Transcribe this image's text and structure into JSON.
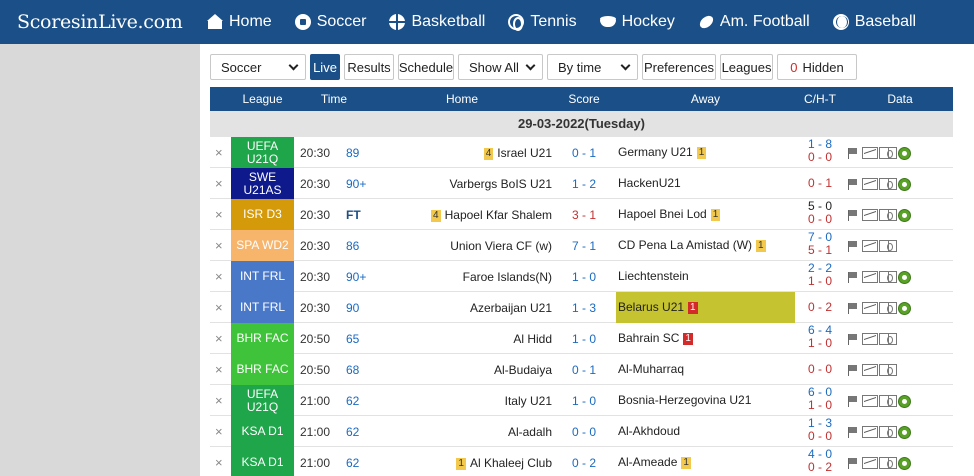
{
  "site": {
    "logo": "ScoresinLive.com"
  },
  "nav": [
    {
      "label": "Home",
      "icon": "home-icon"
    },
    {
      "label": "Soccer",
      "icon": "soccer-ball-icon"
    },
    {
      "label": "Basketball",
      "icon": "basketball-icon"
    },
    {
      "label": "Tennis",
      "icon": "tennis-ball-icon"
    },
    {
      "label": "Hockey",
      "icon": "hockey-puck-icon"
    },
    {
      "label": "Am. Football",
      "icon": "american-football-icon"
    },
    {
      "label": "Baseball",
      "icon": "baseball-icon"
    }
  ],
  "toolbar": {
    "sport_select": "Soccer",
    "live": "Live",
    "results": "Results",
    "schedule": "Schedule",
    "show_select": "Show All",
    "sort_select": "By time",
    "preferences": "Preferences",
    "leagues": "Leagues",
    "hidden_count": "0",
    "hidden_label": "Hidden"
  },
  "table": {
    "headers": {
      "league": "League",
      "time": "Time",
      "home": "Home",
      "score": "Score",
      "away": "Away",
      "cht": "C/H-T",
      "data": "Data"
    },
    "date": "29-03-2022(Tuesday)",
    "colors": {
      "header": "#1b4f87",
      "highlight": "#c6c330"
    },
    "rows": [
      {
        "league": "UEFA U21Q",
        "league_color": "#1fa64a",
        "time": "20:30",
        "minute": "89",
        "home": "Israel U21",
        "home_yellow": "4",
        "home_red": "",
        "score": "0 - 1",
        "away": "Germany U21",
        "away_yellow": "1",
        "away_red": "",
        "cht_top": "1 - 8",
        "cht_bottom": "0 - 0",
        "hl": false
      },
      {
        "league": "SWE U21AS",
        "league_color": "#0e1a8c",
        "time": "20:30",
        "minute": "90+",
        "home": "Varbergs BoIS U21",
        "home_yellow": "",
        "home_red": "",
        "score": "1 - 2",
        "away": "HackenU21",
        "away_yellow": "",
        "away_red": "",
        "cht_top": "",
        "cht_bottom": "0 - 1",
        "hl": false
      },
      {
        "league": "ISR D3",
        "league_color": "#d49a0a",
        "time": "20:30",
        "minute": "FT",
        "home": "Hapoel Kfar Shalem",
        "home_yellow": "4",
        "home_red": "",
        "score": "3 - 1",
        "away": "Hapoel Bnei Lod",
        "away_yellow": "1",
        "away_red": "",
        "cht_top": "5 - 0",
        "cht_bottom": "0 - 0",
        "hl": false
      },
      {
        "league": "SPA WD2",
        "league_color": "#f7b46b",
        "time": "20:30",
        "minute": "86",
        "home": "Union Viera CF (w)",
        "home_yellow": "",
        "home_red": "",
        "score": "7 - 1",
        "away": "CD Pena La Amistad (W)",
        "away_yellow": "1",
        "away_red": "",
        "cht_top": "7 - 0",
        "cht_bottom": "5 - 1",
        "hl": false
      },
      {
        "league": "INT FRL",
        "league_color": "#4a78c8",
        "time": "20:30",
        "minute": "90+",
        "home": "Faroe Islands(N)",
        "home_yellow": "",
        "home_red": "",
        "score": "1 - 0",
        "away": "Liechtenstein",
        "away_yellow": "",
        "away_red": "",
        "cht_top": "2 - 2",
        "cht_bottom": "1 - 0",
        "hl": false
      },
      {
        "league": "INT FRL",
        "league_color": "#4a78c8",
        "time": "20:30",
        "minute": "90",
        "home": "Azerbaijan U21",
        "home_yellow": "",
        "home_red": "",
        "score": "1 - 3",
        "away": "Belarus U21",
        "away_yellow": "",
        "away_red": "1",
        "cht_top": "",
        "cht_bottom": "0 - 2",
        "hl": true
      },
      {
        "league": "BHR FAC",
        "league_color": "#3fc33a",
        "time": "20:50",
        "minute": "65",
        "home": "Al Hidd",
        "home_yellow": "",
        "home_red": "",
        "score": "1 - 0",
        "away": "Bahrain SC",
        "away_yellow": "",
        "away_red": "1",
        "cht_top": "6 - 4",
        "cht_bottom": "1 - 0",
        "hl": false
      },
      {
        "league": "BHR FAC",
        "league_color": "#3fc33a",
        "time": "20:50",
        "minute": "68",
        "home": "Al-Budaiya",
        "home_yellow": "",
        "home_red": "",
        "score": "0 - 1",
        "away": "Al-Muharraq",
        "away_yellow": "",
        "away_red": "",
        "cht_top": "",
        "cht_bottom": "0 - 0",
        "hl": false
      },
      {
        "league": "UEFA U21Q",
        "league_color": "#1fa64a",
        "time": "21:00",
        "minute": "62",
        "home": "Italy U21",
        "home_yellow": "",
        "home_red": "",
        "score": "1 - 0",
        "away": "Bosnia-Herzegovina U21",
        "away_yellow": "",
        "away_red": "",
        "cht_top": "6 - 0",
        "cht_bottom": "1 - 0",
        "hl": false
      },
      {
        "league": "KSA D1",
        "league_color": "#1fa64a",
        "time": "21:00",
        "minute": "62",
        "home": "Al-adalh",
        "home_yellow": "",
        "home_red": "",
        "score": "0 - 0",
        "away": "Al-Akhdoud",
        "away_yellow": "",
        "away_red": "",
        "cht_top": "1 - 3",
        "cht_bottom": "0 - 0",
        "hl": false
      },
      {
        "league": "KSA D1",
        "league_color": "#1fa64a",
        "time": "21:00",
        "minute": "62",
        "home": "Al Khaleej Club",
        "home_yellow": "1",
        "home_red": "",
        "score": "0 - 2",
        "away": "Al-Ameade",
        "away_yellow": "1",
        "away_red": "",
        "cht_top": "4 - 0",
        "cht_bottom": "0 - 2",
        "hl": false
      }
    ]
  }
}
